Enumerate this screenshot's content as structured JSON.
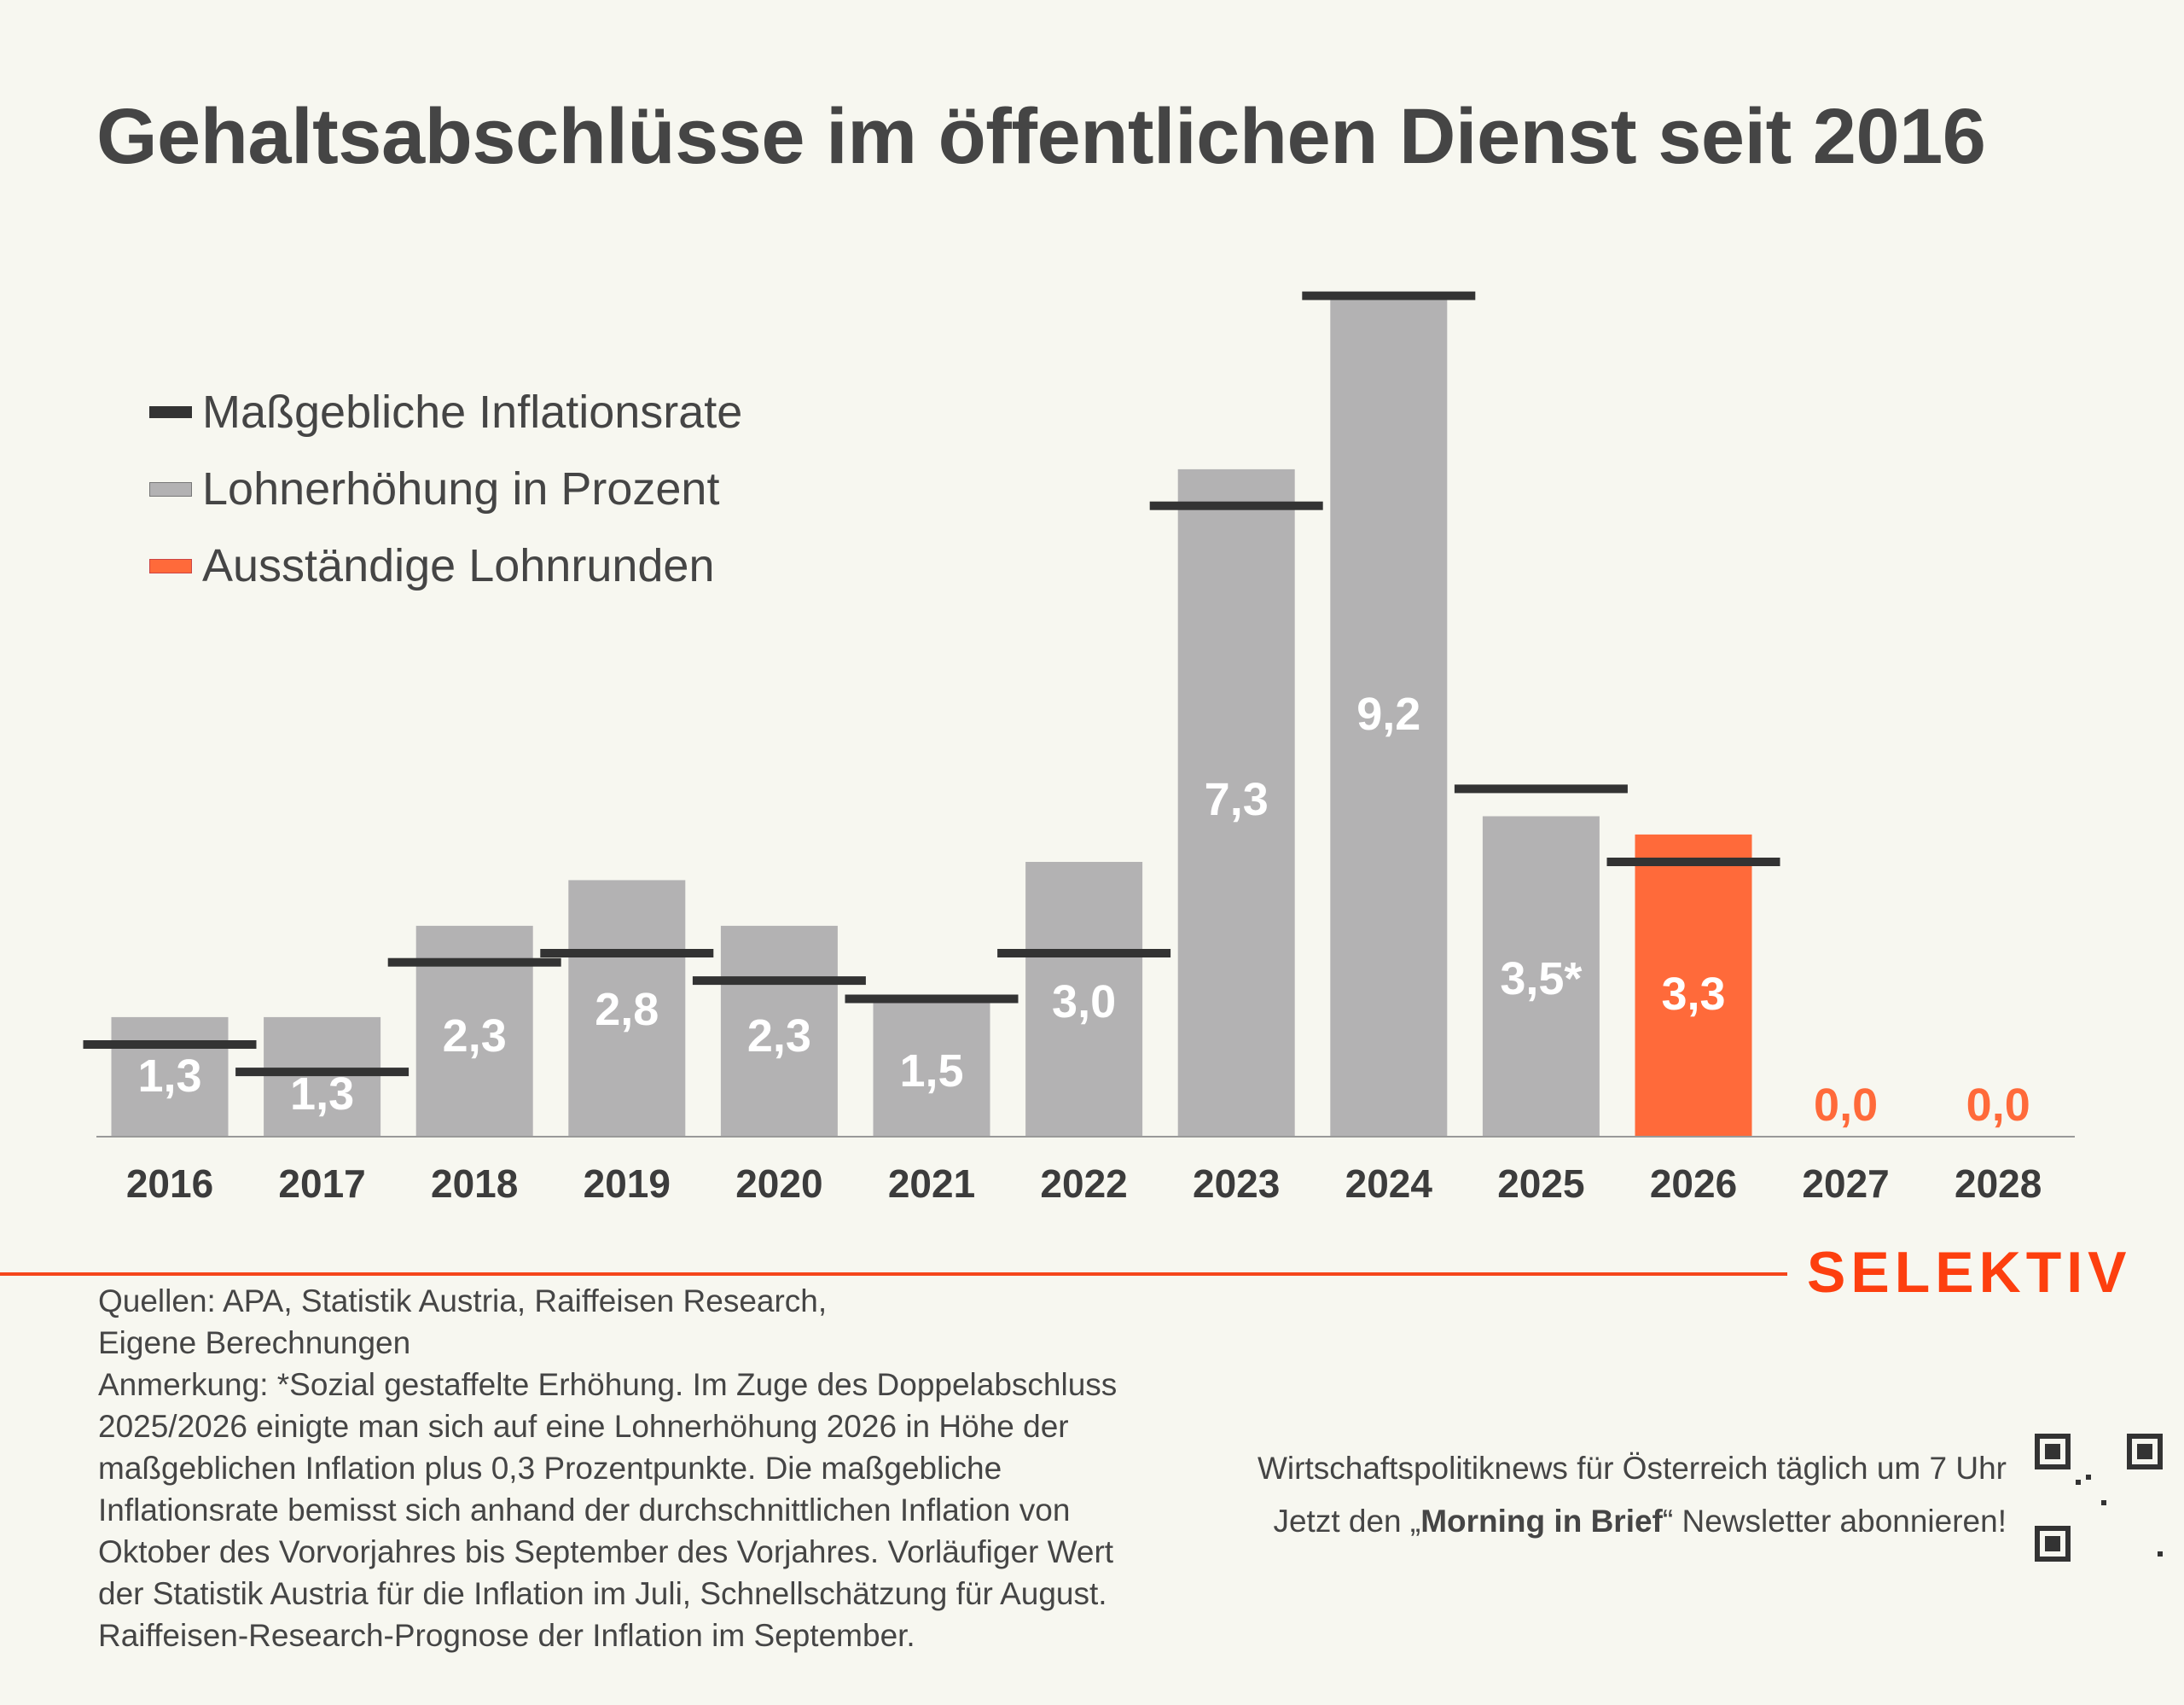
{
  "title": "Gehaltsabschlüsse im öffentlichen Dienst seit 2016",
  "legend": [
    {
      "label": "Maßgebliche Inflationsrate",
      "color": "#333333",
      "kind": "line"
    },
    {
      "label": "Lohnerhöhung in Prozent",
      "color": "#b3b2b3",
      "kind": "bar"
    },
    {
      "label": "Ausständige Lohnrunden",
      "color": "#ff6a3a",
      "kind": "bar"
    }
  ],
  "chart_data": {
    "type": "bar",
    "title": "Gehaltsabschlüsse im öffentlichen Dienst seit 2016",
    "xlabel": "",
    "ylabel": "",
    "categories": [
      "2016",
      "2017",
      "2018",
      "2019",
      "2020",
      "2021",
      "2022",
      "2023",
      "2024",
      "2025",
      "2026",
      "2027",
      "2028"
    ],
    "series": [
      {
        "name": "Lohnerhöhung in Prozent",
        "kind": "bar",
        "values": [
          1.3,
          1.3,
          2.3,
          2.8,
          2.3,
          1.5,
          3.0,
          7.3,
          9.2,
          3.5,
          3.3,
          0.0,
          0.0
        ],
        "labels": [
          "1,3",
          "1,3",
          "2,3",
          "2,8",
          "2,3",
          "1,5",
          "3,0",
          "7,3",
          "9,2",
          "3,5*",
          "3,3",
          "0,0",
          "0,0"
        ],
        "status": [
          "done",
          "done",
          "done",
          "done",
          "done",
          "done",
          "done",
          "done",
          "done",
          "done",
          "pending",
          "pending",
          "pending"
        ]
      },
      {
        "name": "Maßgebliche Inflationsrate",
        "kind": "marker-line",
        "values": [
          1.0,
          0.7,
          1.9,
          2.0,
          1.7,
          1.5,
          2.0,
          6.9,
          9.2,
          3.8,
          3.0,
          null,
          null
        ]
      }
    ],
    "colors": {
      "bar": "#b3b2b3",
      "pending": "#ff6a3a",
      "inflation": "#333333",
      "label_on_bar": "#ffffff",
      "axis": "#999999"
    },
    "ylim": [
      0,
      9.5
    ],
    "grid": false,
    "legend_position": "top-left"
  },
  "footer": {
    "brand": "SELEKTIV",
    "brand_color": "#fd3f0f",
    "sources": "Quellen: APA, Statistik Austria, Raiffeisen Research,",
    "sources2": "Eigene Berechnungen",
    "note": "Anmerkung: *Sozial gestaffelte Erhöhung. Im Zuge des Doppelabschluss 2025/2026 einigte man sich auf eine Lohnerhöhung 2026 in Höhe der maßgeblichen Inflation plus 0,3 Prozentpunkte. Die maßgebliche Inflationsrate bemisst sich anhand der durchschnittlichen Inflation von Oktober des Vorvorjahres bis September des Vorjahres. Vorläufiger Wert der Statistik Austria für die Inflation im Juli, Schnellschätzung für August. Raiffeisen-Research-Prognose der Inflation im September.",
    "promo_line1": "Wirtschaftspolitiknews für Österreich täglich um 7 Uhr",
    "promo_pre": "Jetzt den „",
    "promo_bold": "Morning in Brief",
    "promo_post": "“ Newsletter abonnieren!",
    "qr_icon": "qr-code-icon"
  }
}
